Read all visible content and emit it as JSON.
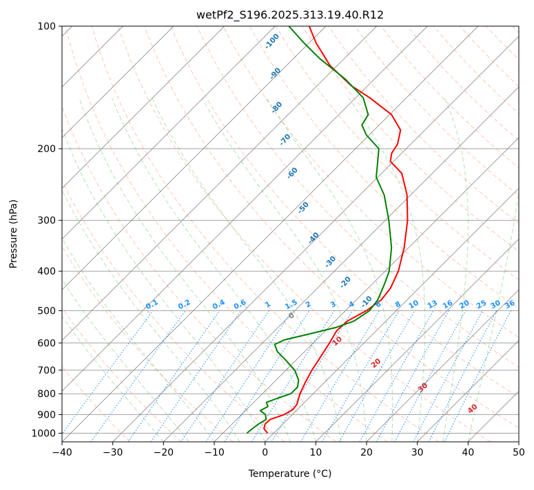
{
  "chart_data": {
    "type": "skew-t",
    "title": "wetPf2_S196.2025.313.19.40.R12",
    "xlabel": "Temperature (°C)",
    "ylabel": "Pressure (hPa)",
    "xlim": [
      -40,
      50
    ],
    "ylim": [
      1050,
      100
    ],
    "x_ticks": [
      -40,
      -30,
      -20,
      -10,
      0,
      10,
      20,
      30,
      40,
      50
    ],
    "x_tick_labels": [
      "−40",
      "−30",
      "−20",
      "−10",
      "0",
      "10",
      "20",
      "30",
      "40",
      "50"
    ],
    "y_ticks": [
      100,
      200,
      300,
      400,
      500,
      600,
      700,
      800,
      900,
      1000
    ],
    "y_tick_labels": [
      "100",
      "200",
      "300",
      "400",
      "500",
      "600",
      "700",
      "800",
      "900",
      "1000"
    ],
    "series": [
      {
        "name": "Temperature",
        "color": "#ff0000",
        "points": [
          {
            "p": 1000,
            "t": -1.2
          },
          {
            "p": 975,
            "t": -2.8
          },
          {
            "p": 950,
            "t": -3.5
          },
          {
            "p": 925,
            "t": -3.4
          },
          {
            "p": 900,
            "t": -1.6
          },
          {
            "p": 875,
            "t": -0.9
          },
          {
            "p": 850,
            "t": -1.1
          },
          {
            "p": 800,
            "t": -2.6
          },
          {
            "p": 750,
            "t": -3.8
          },
          {
            "p": 700,
            "t": -4.9
          },
          {
            "p": 650,
            "t": -5.8
          },
          {
            "p": 600,
            "t": -6.8
          },
          {
            "p": 560,
            "t": -7.8
          },
          {
            "p": 530,
            "t": -7.6
          },
          {
            "p": 500,
            "t": -5.9
          },
          {
            "p": 470,
            "t": -5.1
          },
          {
            "p": 440,
            "t": -5.6
          },
          {
            "p": 400,
            "t": -7.4
          },
          {
            "p": 350,
            "t": -10.9
          },
          {
            "p": 300,
            "t": -15.6
          },
          {
            "p": 260,
            "t": -20.7
          },
          {
            "p": 230,
            "t": -26.0
          },
          {
            "p": 215,
            "t": -30.6
          },
          {
            "p": 205,
            "t": -32.0
          },
          {
            "p": 195,
            "t": -32.6
          },
          {
            "p": 180,
            "t": -34.8
          },
          {
            "p": 165,
            "t": -39.6
          },
          {
            "p": 150,
            "t": -47.2
          },
          {
            "p": 140,
            "t": -53.3
          },
          {
            "p": 125,
            "t": -61.4
          },
          {
            "p": 110,
            "t": -68.6
          },
          {
            "p": 100,
            "t": -73.3
          }
        ]
      },
      {
        "name": "Dewpoint",
        "color": "#008000",
        "points": [
          {
            "p": 1000,
            "t": -5.3
          },
          {
            "p": 975,
            "t": -5.1
          },
          {
            "p": 950,
            "t": -4.8
          },
          {
            "p": 925,
            "t": -4.2
          },
          {
            "p": 900,
            "t": -5.3
          },
          {
            "p": 880,
            "t": -7.1
          },
          {
            "p": 860,
            "t": -6.4
          },
          {
            "p": 840,
            "t": -7.5
          },
          {
            "p": 820,
            "t": -6.1
          },
          {
            "p": 800,
            "t": -4.4
          },
          {
            "p": 770,
            "t": -4.4
          },
          {
            "p": 740,
            "t": -5.6
          },
          {
            "p": 700,
            "t": -8.3
          },
          {
            "p": 660,
            "t": -12.2
          },
          {
            "p": 630,
            "t": -15.4
          },
          {
            "p": 605,
            "t": -17.3
          },
          {
            "p": 590,
            "t": -16.3
          },
          {
            "p": 570,
            "t": -12.5
          },
          {
            "p": 550,
            "t": -8.6
          },
          {
            "p": 530,
            "t": -6.3
          },
          {
            "p": 500,
            "t": -5.3
          },
          {
            "p": 470,
            "t": -5.8
          },
          {
            "p": 430,
            "t": -7.6
          },
          {
            "p": 400,
            "t": -9.2
          },
          {
            "p": 350,
            "t": -13.4
          },
          {
            "p": 300,
            "t": -19.3
          },
          {
            "p": 260,
            "t": -25.2
          },
          {
            "p": 235,
            "t": -30.3
          },
          {
            "p": 215,
            "t": -33.1
          },
          {
            "p": 200,
            "t": -35.4
          },
          {
            "p": 185,
            "t": -40.6
          },
          {
            "p": 175,
            "t": -43.4
          },
          {
            "p": 165,
            "t": -44.2
          },
          {
            "p": 150,
            "t": -48.5
          },
          {
            "p": 135,
            "t": -55.7
          },
          {
            "p": 120,
            "t": -64.9
          },
          {
            "p": 110,
            "t": -71.0
          },
          {
            "p": 100,
            "t": -77.3
          }
        ]
      }
    ],
    "dry_adiabat_labels": [
      "-100",
      "-90",
      "-80",
      "-70",
      "-60",
      "-50",
      "-40",
      "-30",
      "-20",
      "-10"
    ],
    "dry_adiabat_label_points": [
      {
        "label": "-100",
        "p": 110,
        "t": -77
      },
      {
        "label": "-90",
        "p": 132,
        "t": -70
      },
      {
        "label": "-80",
        "p": 160,
        "t": -63
      },
      {
        "label": "-70",
        "p": 192,
        "t": -55
      },
      {
        "label": "-60",
        "p": 232,
        "t": -47
      },
      {
        "label": "-50",
        "p": 282,
        "t": -38
      },
      {
        "label": "-40",
        "p": 335,
        "t": -30
      },
      {
        "label": "-30",
        "p": 383,
        "t": -22
      },
      {
        "label": "-20",
        "p": 430,
        "t": -15
      },
      {
        "label": "-10",
        "p": 480,
        "t": -7
      }
    ],
    "mixing_ratio_labels": [
      "0.1",
      "0.2",
      "0.4",
      "0.6",
      "1",
      "1.5",
      "2",
      "3",
      "4",
      "6",
      "8",
      "10",
      "13",
      "16",
      "20",
      "25",
      "30",
      "36"
    ],
    "mixing_ratio_values": [
      0.1,
      0.2,
      0.4,
      0.6,
      1,
      1.5,
      2,
      3,
      4,
      6,
      8,
      10,
      13,
      16,
      20,
      25,
      30,
      36
    ],
    "moist_adiabat_labels": [
      "0",
      "10",
      "20",
      "30",
      "40"
    ],
    "moist_adiabat_label_points": [
      {
        "label": "0",
        "p": 520,
        "t": -19
      },
      {
        "label": "10",
        "p": 600,
        "t": -5
      },
      {
        "label": "20",
        "p": 680,
        "t": 7
      },
      {
        "label": "30",
        "p": 780,
        "t": 21
      },
      {
        "label": "40",
        "p": 880,
        "t": 35
      }
    ],
    "colors": {
      "temperature": "#ff0000",
      "dewpoint": "#008000",
      "dry_adiabat": "#ff7f50",
      "moist_adiabat": "#2ca02c",
      "mixing_ratio": "#1e90ff",
      "isotherm": "#909090",
      "isobar": "#a0a0a0",
      "dry_label": "#1f77b4",
      "moist_label": "#d62728",
      "tan_curve": "#d2b48c"
    },
    "grid": true
  }
}
